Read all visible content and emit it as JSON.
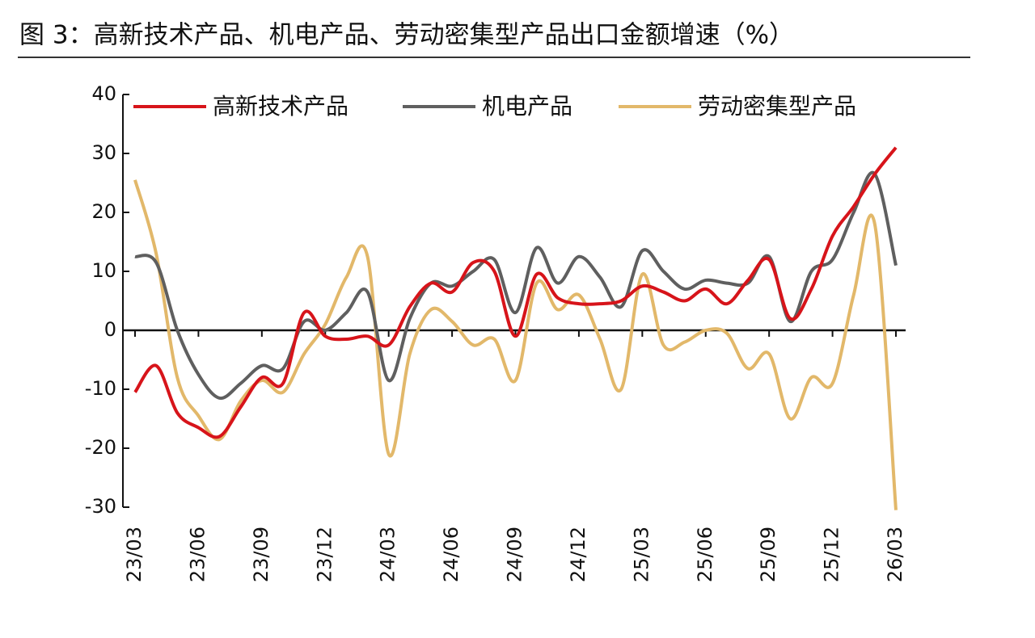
{
  "chart_data": {
    "type": "line",
    "title": "图 3：高新技术产品、机电产品、劳动密集型产品出口金额增速（%）",
    "categories": [
      "23/03",
      null,
      null,
      "23/06",
      null,
      null,
      "23/09",
      null,
      null,
      "23/12",
      null,
      null,
      "24/03",
      null,
      null,
      "24/06",
      null,
      null,
      "24/09",
      null,
      null,
      "24/12",
      null,
      null,
      "25/03",
      null,
      null,
      "25/06",
      null,
      null,
      "25/09",
      null,
      null,
      "25/12",
      null,
      null,
      "26/03"
    ],
    "series": [
      {
        "name": "高新技术产品",
        "color": "#d7141a",
        "values": [
          -10.5,
          -6,
          -14,
          -16.5,
          -18,
          -13,
          -8,
          -9,
          3,
          -1,
          -1.5,
          -1,
          -2.5,
          4,
          8,
          6.5,
          11.5,
          10,
          -1,
          9.5,
          5.5,
          4.5,
          4.5,
          5,
          7.5,
          6.5,
          5,
          7,
          4.5,
          8.5,
          12,
          2,
          7,
          16,
          21,
          26.5,
          31
        ]
      },
      {
        "name": "机电产品",
        "color": "#5f5f5f",
        "values": [
          12.5,
          11.5,
          0,
          -7.5,
          -11.5,
          -9,
          -6,
          -6.5,
          1.5,
          0,
          3,
          6.5,
          -8.5,
          2,
          8,
          7.5,
          10,
          12,
          3,
          14,
          8,
          12.5,
          9,
          4,
          13.5,
          10,
          7,
          8.5,
          8,
          8,
          12.5,
          1.5,
          10,
          12,
          20,
          26.5,
          11
        ]
      },
      {
        "name": "劳动密集型产品",
        "color": "#e2b86a",
        "values": [
          25.5,
          13,
          -8,
          -14.5,
          -18.5,
          -12,
          -8.5,
          -10.5,
          -4,
          1,
          9,
          12.5,
          -21,
          -4,
          3.5,
          1.5,
          -2.5,
          -1.5,
          -8.5,
          8,
          3.5,
          6,
          -1.5,
          -10,
          9.5,
          -2.5,
          -2,
          0,
          -0.5,
          -6.5,
          -4,
          -15,
          -8,
          -9,
          6,
          18,
          -30.5
        ]
      }
    ],
    "ylim": [
      -30,
      40
    ],
    "yticks": [
      -30,
      -20,
      -10,
      0,
      10,
      20,
      30,
      40
    ]
  }
}
